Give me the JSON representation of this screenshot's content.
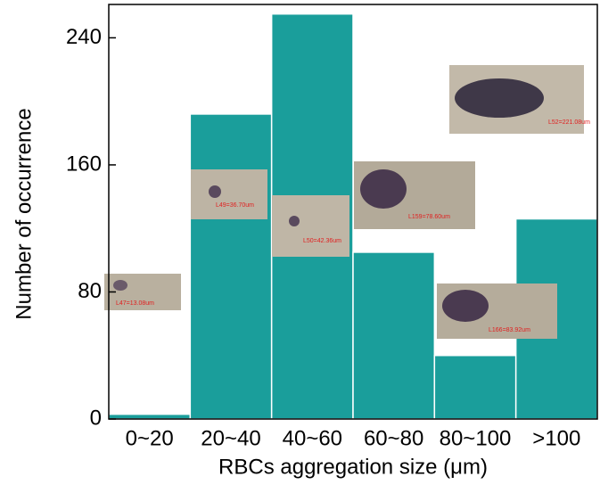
{
  "chart_data": {
    "type": "bar",
    "x_label": "RBCs aggregation size (μm)",
    "y_label": "Number of occurrence",
    "categories": [
      "0~20",
      "20~40",
      "40~60",
      "60~80",
      "80~100",
      ">100"
    ],
    "values": [
      3,
      192,
      255,
      105,
      40,
      126
    ],
    "color": "#1a9e9b",
    "ylim": [
      0,
      261
    ],
    "yticks": [
      0,
      80,
      160,
      240
    ],
    "annotations": [
      "L47=13.08um",
      "L49=36.70um",
      "L50=42.36um",
      "L159=78.60um",
      "L166=83.92um",
      "L52=221.08um"
    ]
  }
}
